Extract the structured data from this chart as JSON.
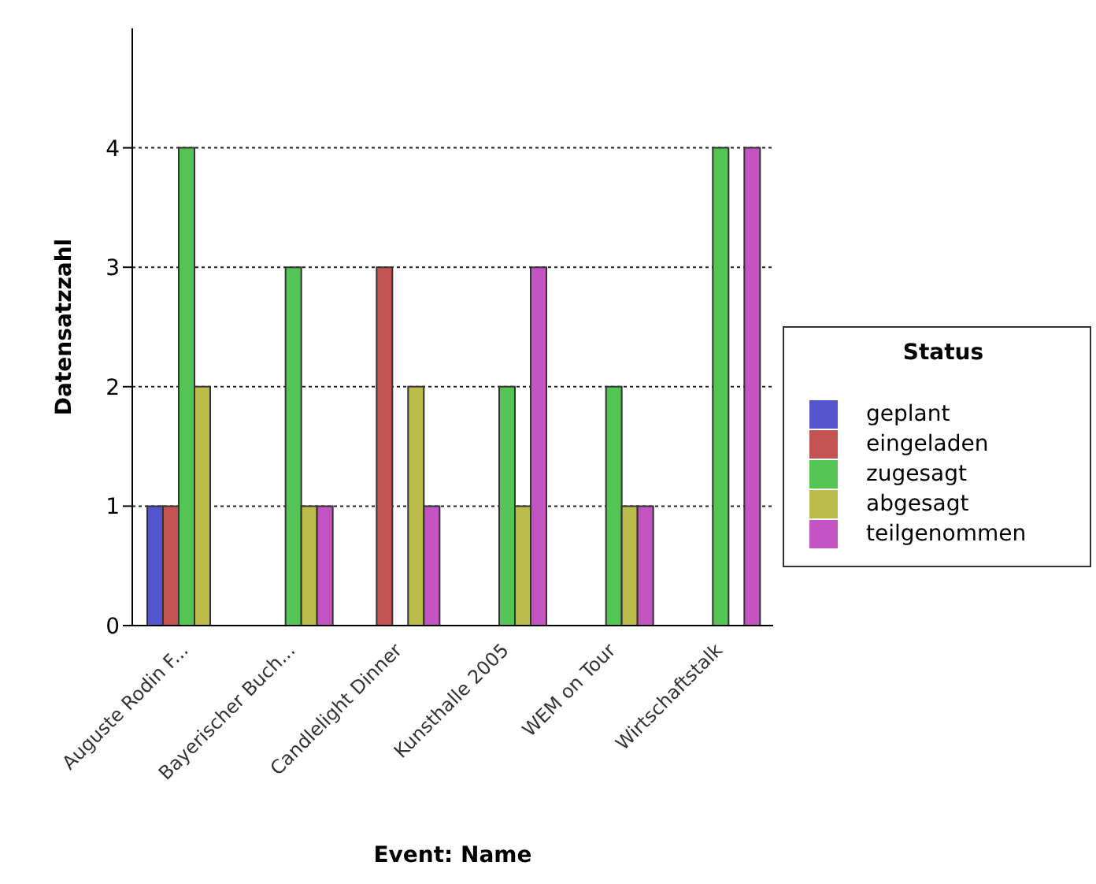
{
  "chart_data": {
    "type": "bar",
    "xlabel": "Event: Name",
    "ylabel": "Datensatzzahl",
    "legend_title": "Status",
    "legend": "right",
    "grid": "y",
    "categories": [
      "Auguste Rodin F...",
      "Bayerischer Buch...",
      "Candlelight Dinner",
      "Kunsthalle 2005",
      "WEM on Tour",
      "Wirtschaftstalk"
    ],
    "ylim": [
      0,
      5
    ],
    "yticks": [
      0,
      1,
      2,
      3,
      4
    ],
    "series": [
      {
        "name": "geplant",
        "color": "#5454cc",
        "values": [
          1,
          null,
          null,
          null,
          null,
          null
        ]
      },
      {
        "name": "eingeladen",
        "color": "#c45454",
        "values": [
          1,
          null,
          3,
          null,
          null,
          null
        ]
      },
      {
        "name": "zugesagt",
        "color": "#54c454",
        "values": [
          4,
          3,
          null,
          2,
          2,
          4
        ]
      },
      {
        "name": "abgesagt",
        "color": "#bcbc4c",
        "values": [
          2,
          1,
          2,
          1,
          1,
          null
        ]
      },
      {
        "name": "teilgenommen",
        "color": "#c454c4",
        "values": [
          null,
          1,
          1,
          3,
          1,
          4
        ]
      }
    ]
  }
}
